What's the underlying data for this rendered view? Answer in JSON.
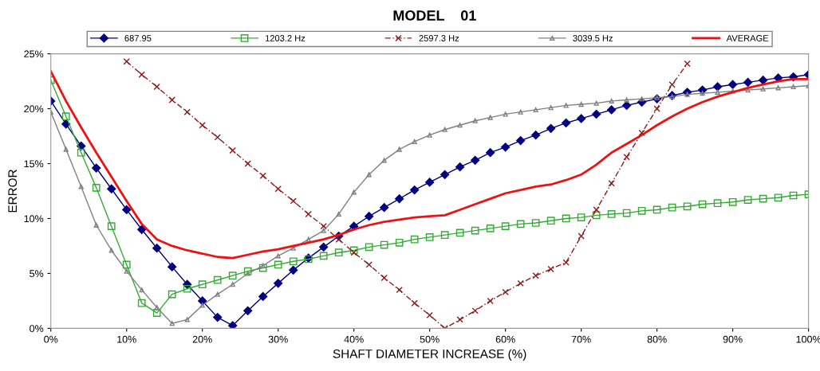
{
  "chart_data": {
    "type": "line",
    "title": "MODEL    01",
    "xlabel": "SHAFT DIAMETER INCREASE (%)",
    "ylabel": "ERROR",
    "x": [
      0,
      2,
      4,
      6,
      8,
      10,
      12,
      14,
      16,
      18,
      20,
      22,
      24,
      26,
      28,
      30,
      32,
      34,
      36,
      38,
      40,
      42,
      44,
      46,
      48,
      50,
      52,
      54,
      56,
      58,
      60,
      62,
      64,
      66,
      68,
      70,
      72,
      74,
      76,
      78,
      80,
      82,
      84,
      86,
      88,
      90,
      92,
      94,
      96,
      98,
      100
    ],
    "series": [
      {
        "name": "687.95",
        "color": "#000080",
        "marker": "diamond",
        "line_style": "solid",
        "values": [
          20.7,
          18.6,
          16.6,
          14.6,
          12.7,
          10.8,
          9.0,
          7.3,
          5.6,
          4.0,
          2.5,
          1.0,
          0.25,
          1.6,
          2.9,
          4.1,
          5.3,
          6.4,
          7.4,
          8.4,
          9.3,
          10.2,
          11.0,
          11.8,
          12.6,
          13.3,
          14.0,
          14.7,
          15.3,
          16.0,
          16.5,
          17.1,
          17.6,
          18.2,
          18.7,
          19.1,
          19.5,
          19.9,
          20.3,
          20.6,
          20.9,
          21.2,
          21.5,
          21.7,
          22.0,
          22.2,
          22.4,
          22.6,
          22.8,
          22.9,
          23.1
        ]
      },
      {
        "name": "1203.2 Hz",
        "color": "#33aa33",
        "marker": "square",
        "line_style": "solid",
        "values": [
          22.6,
          19.3,
          16.0,
          12.8,
          9.3,
          5.8,
          2.3,
          1.4,
          3.1,
          3.6,
          4.0,
          4.4,
          4.8,
          5.2,
          5.5,
          5.8,
          6.1,
          6.3,
          6.6,
          6.9,
          7.1,
          7.4,
          7.6,
          7.8,
          8.1,
          8.3,
          8.5,
          8.7,
          8.9,
          9.1,
          9.3,
          9.5,
          9.6,
          9.8,
          10.0,
          10.1,
          10.3,
          10.4,
          10.5,
          10.7,
          10.8,
          11.0,
          11.1,
          11.3,
          11.4,
          11.5,
          11.7,
          11.8,
          11.9,
          12.1,
          12.2
        ]
      },
      {
        "name": "2597.3 Hz",
        "color": "#8b1a1a",
        "marker": "cross",
        "line_style": "dashed",
        "values": [
          null,
          null,
          null,
          null,
          null,
          24.3,
          23.1,
          22.0,
          20.8,
          19.7,
          18.5,
          17.4,
          16.2,
          15.0,
          13.9,
          12.7,
          11.6,
          10.4,
          9.3,
          8.1,
          6.9,
          5.8,
          4.6,
          3.5,
          2.3,
          1.2,
          0.0,
          0.8,
          1.6,
          2.5,
          3.3,
          4.1,
          4.8,
          5.4,
          6.0,
          8.4,
          10.8,
          13.2,
          15.6,
          17.8,
          20.0,
          22.2,
          24.1,
          null,
          null,
          null,
          null,
          null,
          null,
          null,
          null
        ]
      },
      {
        "name": "3039.5 Hz",
        "color": "#808080",
        "marker": "triangle",
        "line_style": "solid",
        "values": [
          19.7,
          16.3,
          12.9,
          9.4,
          7.1,
          5.2,
          3.5,
          1.9,
          0.45,
          0.8,
          2.1,
          3.1,
          4.0,
          5.0,
          5.7,
          6.6,
          7.3,
          8.1,
          8.9,
          10.4,
          12.4,
          14.0,
          15.3,
          16.3,
          17.0,
          17.6,
          18.1,
          18.5,
          18.9,
          19.2,
          19.5,
          19.7,
          19.9,
          20.1,
          20.3,
          20.4,
          20.5,
          20.7,
          20.8,
          20.9,
          21.0,
          21.1,
          21.3,
          21.4,
          21.5,
          21.6,
          21.7,
          21.8,
          21.9,
          22.0,
          22.1
        ]
      },
      {
        "name": "AVERAGE",
        "color": "#ee1111",
        "marker": "none",
        "line_style": "solid",
        "values": [
          23.4,
          20.7,
          18.3,
          16.0,
          13.8,
          11.6,
          9.5,
          8.1,
          7.5,
          7.1,
          6.8,
          6.5,
          6.4,
          6.7,
          7.0,
          7.2,
          7.5,
          7.8,
          8.1,
          8.5,
          9.0,
          9.4,
          9.7,
          9.9,
          10.1,
          10.2,
          10.3,
          10.8,
          11.3,
          11.8,
          12.3,
          12.6,
          12.9,
          13.1,
          13.5,
          14.0,
          14.9,
          16.0,
          16.8,
          17.6,
          18.5,
          19.3,
          20.0,
          20.6,
          21.1,
          21.5,
          21.9,
          22.2,
          22.5,
          22.7,
          22.7
        ]
      }
    ],
    "xlim": [
      0,
      100
    ],
    "ylim": [
      0,
      25
    ],
    "xticks": [
      {
        "value": 0,
        "label": "0%"
      },
      {
        "value": 10,
        "label": "10%"
      },
      {
        "value": 20,
        "label": "20%"
      },
      {
        "value": 30,
        "label": "30%"
      },
      {
        "value": 40,
        "label": "40%"
      },
      {
        "value": 50,
        "label": "50%"
      },
      {
        "value": 60,
        "label": "60%"
      },
      {
        "value": 70,
        "label": "70%"
      },
      {
        "value": 80,
        "label": "80%"
      },
      {
        "value": 90,
        "label": "90%"
      },
      {
        "value": 100,
        "label": "100%"
      }
    ],
    "yticks": [
      {
        "value": 0,
        "label": "0%"
      },
      {
        "value": 5,
        "label": "5%"
      },
      {
        "value": 10,
        "label": "10%"
      },
      {
        "value": 15,
        "label": "15%"
      },
      {
        "value": 20,
        "label": "20%"
      },
      {
        "value": 25,
        "label": "25%"
      }
    ],
    "grid": false,
    "legend": "top"
  }
}
